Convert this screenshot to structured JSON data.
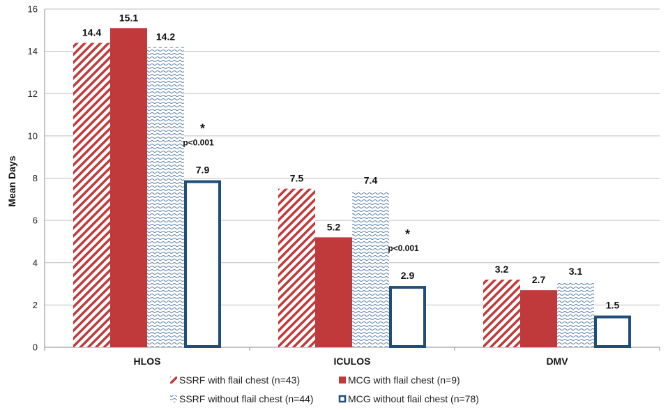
{
  "chart_data": {
    "type": "bar",
    "categories": [
      "HLOS",
      "ICULOS",
      "DMV"
    ],
    "ylabel": "Mean Days",
    "ylim": [
      0,
      16
    ],
    "yticks": [
      0,
      2,
      4,
      6,
      8,
      10,
      12,
      14,
      16
    ],
    "grid": true,
    "legend_position": "bottom",
    "series": [
      {
        "name": "SSRF with flail chest (n=43)",
        "values": [
          14.4,
          7.5,
          3.2
        ],
        "labels": [
          "14.4",
          "7.5",
          "3.2"
        ],
        "color": "#c0393b",
        "pattern": "diagonal-stripes"
      },
      {
        "name": "MCG with flail chest (n=9)",
        "values": [
          15.1,
          5.2,
          2.7
        ],
        "labels": [
          "15.1",
          "5.2",
          "2.7"
        ],
        "color": "#c0393b",
        "pattern": "solid"
      },
      {
        "name": "SSRF without flail chest (n=44)",
        "values": [
          14.2,
          7.4,
          3.1
        ],
        "labels": [
          "14.2",
          "7.4",
          "3.1"
        ],
        "color": "#5a7fa8",
        "pattern": "waves"
      },
      {
        "name": "MCG without flail chest (n=78)",
        "values": [
          7.9,
          2.9,
          1.5
        ],
        "labels": [
          "7.9",
          "2.9",
          "1.5"
        ],
        "color": "#1f4e79",
        "pattern": "outline"
      }
    ],
    "annotations": [
      {
        "category": "HLOS",
        "star": "*",
        "text": "p<0.001"
      },
      {
        "category": "ICULOS",
        "star": "*",
        "text": "p<0.001"
      }
    ]
  }
}
